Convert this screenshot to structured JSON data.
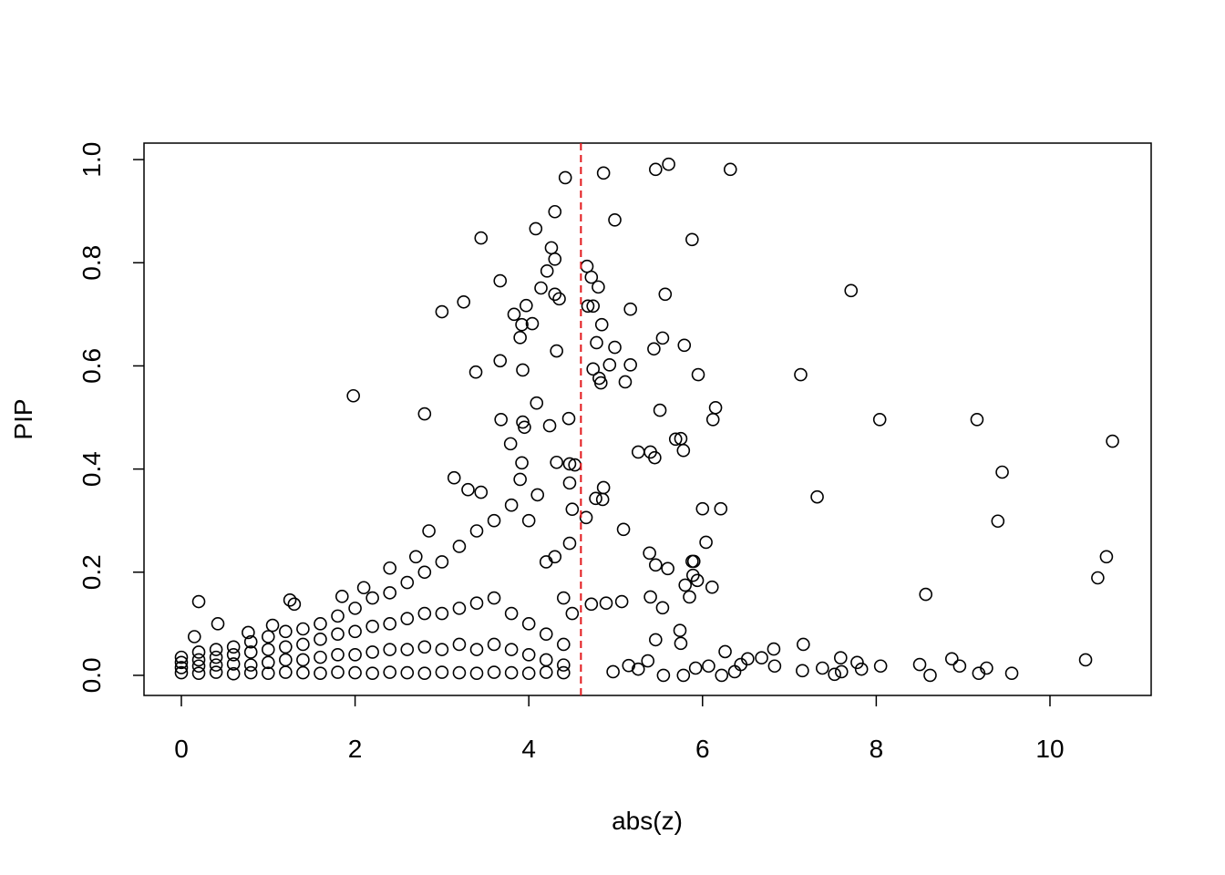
{
  "chart_data": {
    "type": "scatter",
    "x_label": "abs(z)",
    "y_label": "PIP",
    "xlim": [
      -0.43,
      11.165
    ],
    "ylim": [
      -0.039,
      1.032
    ],
    "xticks": [
      0,
      2,
      4,
      6,
      8,
      10
    ],
    "yticks": [
      {
        "value": 0,
        "label": "0.0"
      },
      0.2,
      0.4,
      0.6,
      0.8,
      {
        "value": 1,
        "label": "1.0"
      }
    ],
    "color": "#000000",
    "vline": 4.6,
    "vline_color": "#e3191c",
    "x": [
      4.42,
      4.86,
      5.46,
      5.61,
      6.32,
      4.08,
      4.3,
      4.99,
      3.45,
      5.88,
      4.26,
      4.3,
      4.67,
      4.21,
      4.72,
      3.67,
      4.8,
      4.14,
      7.71,
      4.3,
      5.57,
      4.35,
      3.25,
      3.97,
      4.68,
      4.74,
      5.17,
      3.0,
      3.83,
      4.04,
      3.92,
      4.84,
      3.9,
      5.54,
      4.78,
      5.79,
      4.32,
      5.44,
      4.99,
      4.74,
      4.93,
      5.17,
      3.39,
      3.93,
      3.67,
      5.95,
      7.13,
      4.81,
      4.83,
      5.11,
      1.98,
      4.09,
      6.15,
      5.51,
      2.8,
      3.68,
      4.46,
      6.12,
      8.04,
      9.16,
      3.93,
      4.24,
      3.95,
      5.69,
      5.75,
      10.72,
      3.79,
      5.26,
      5.4,
      5.78,
      5.45,
      3.92,
      4.47,
      4.53,
      4.32,
      9.45,
      4.47,
      3.14,
      4.86,
      7.32,
      4.85,
      4.77,
      6.0,
      6.21,
      4.5,
      9.4,
      4.66,
      5.09,
      6.04,
      4.47,
      5.39,
      10.65,
      5.46,
      5.6,
      5.88,
      5.9,
      10.55,
      5.89,
      5.94,
      5.8,
      6.11,
      5.85,
      8.57,
      5.4,
      5.07,
      4.89,
      4.72,
      0.2,
      5.54,
      5.74,
      7.16,
      5.75,
      5.46,
      6.82,
      6.26,
      7.59,
      7.78,
      8.05,
      8.5,
      8.87,
      8.96,
      9.27,
      9.18,
      9.56,
      8.62,
      10.41,
      7.15,
      7.38,
      7.52,
      7.6,
      7.83,
      6.68,
      6.52,
      6.44,
      6.37,
      6.22,
      6.07,
      5.92,
      6.83,
      5.78,
      5.55,
      5.37,
      5.26,
      5.15,
      4.97,
      0.0,
      0.0,
      0.0,
      0.0,
      0.2,
      0.2,
      0.2,
      0.2,
      0.4,
      0.4,
      0.4,
      0.4,
      0.6,
      0.6,
      0.6,
      0.6,
      0.8,
      0.8,
      0.8,
      0.8,
      1.0,
      1.0,
      1.0,
      1.0,
      1.2,
      1.2,
      1.2,
      1.2,
      1.4,
      1.4,
      1.4,
      1.4,
      1.6,
      1.6,
      1.6,
      1.6,
      1.8,
      1.8,
      1.8,
      1.8,
      2.0,
      2.0,
      2.0,
      2.0,
      2.2,
      2.2,
      2.2,
      2.2,
      2.4,
      2.4,
      2.4,
      2.4,
      2.6,
      2.6,
      2.6,
      2.6,
      2.8,
      2.8,
      2.8,
      2.8,
      3.0,
      3.0,
      3.0,
      3.0,
      3.2,
      3.2,
      3.2,
      3.2,
      3.4,
      3.4,
      3.4,
      3.4,
      3.6,
      3.6,
      3.6,
      3.6,
      3.8,
      3.8,
      3.8,
      3.8,
      4.0,
      4.0,
      4.0,
      4.0,
      4.2,
      4.2,
      4.2,
      4.2,
      4.4,
      4.4,
      4.4,
      4.4,
      0.15,
      0.42,
      0.77,
      1.05,
      1.25,
      1.3,
      1.85,
      2.1,
      2.4,
      2.7,
      2.85,
      3.3,
      3.45,
      3.9,
      4.1,
      4.3,
      4.5
    ],
    "values": [
      0.965,
      0.974,
      0.981,
      0.991,
      0.981,
      0.866,
      0.899,
      0.883,
      0.848,
      0.845,
      0.829,
      0.807,
      0.793,
      0.784,
      0.772,
      0.765,
      0.753,
      0.751,
      0.746,
      0.739,
      0.739,
      0.73,
      0.724,
      0.717,
      0.716,
      0.716,
      0.71,
      0.705,
      0.7,
      0.682,
      0.68,
      0.68,
      0.655,
      0.654,
      0.645,
      0.64,
      0.629,
      0.633,
      0.636,
      0.594,
      0.602,
      0.602,
      0.588,
      0.592,
      0.61,
      0.583,
      0.583,
      0.576,
      0.567,
      0.569,
      0.542,
      0.528,
      0.519,
      0.514,
      0.507,
      0.496,
      0.498,
      0.496,
      0.496,
      0.496,
      0.491,
      0.484,
      0.481,
      0.458,
      0.459,
      0.454,
      0.449,
      0.433,
      0.433,
      0.436,
      0.422,
      0.412,
      0.41,
      0.408,
      0.413,
      0.394,
      0.373,
      0.383,
      0.364,
      0.346,
      0.341,
      0.343,
      0.323,
      0.323,
      0.322,
      0.299,
      0.306,
      0.283,
      0.258,
      0.256,
      0.237,
      0.23,
      0.214,
      0.207,
      0.221,
      0.221,
      0.189,
      0.194,
      0.184,
      0.175,
      0.171,
      0.152,
      0.157,
      0.152,
      0.143,
      0.14,
      0.138,
      0.143,
      0.131,
      0.087,
      0.06,
      0.062,
      0.069,
      0.051,
      0.046,
      0.034,
      0.025,
      0.018,
      0.021,
      0.032,
      0.018,
      0.014,
      0.004,
      0.004,
      0.0,
      0.03,
      0.009,
      0.014,
      0.002,
      0.007,
      0.012,
      0.034,
      0.032,
      0.021,
      0.007,
      0.0,
      0.018,
      0.014,
      0.018,
      0.0,
      0.0,
      0.028,
      0.012,
      0.019,
      0.007,
      0.005,
      0.015,
      0.025,
      0.035,
      0.004,
      0.018,
      0.03,
      0.045,
      0.006,
      0.02,
      0.035,
      0.05,
      0.003,
      0.022,
      0.04,
      0.055,
      0.005,
      0.02,
      0.045,
      0.065,
      0.004,
      0.025,
      0.05,
      0.075,
      0.006,
      0.03,
      0.055,
      0.085,
      0.005,
      0.03,
      0.06,
      0.09,
      0.004,
      0.035,
      0.07,
      0.1,
      0.006,
      0.04,
      0.08,
      0.115,
      0.005,
      0.04,
      0.085,
      0.13,
      0.004,
      0.045,
      0.095,
      0.15,
      0.006,
      0.05,
      0.1,
      0.16,
      0.005,
      0.05,
      0.11,
      0.18,
      0.004,
      0.055,
      0.12,
      0.2,
      0.006,
      0.05,
      0.12,
      0.22,
      0.005,
      0.06,
      0.13,
      0.25,
      0.004,
      0.05,
      0.14,
      0.28,
      0.006,
      0.06,
      0.15,
      0.3,
      0.005,
      0.05,
      0.12,
      0.33,
      0.004,
      0.04,
      0.1,
      0.3,
      0.006,
      0.03,
      0.08,
      0.22,
      0.005,
      0.02,
      0.06,
      0.15,
      0.075,
      0.1,
      0.083,
      0.097,
      0.146,
      0.138,
      0.153,
      0.17,
      0.208,
      0.23,
      0.28,
      0.36,
      0.355,
      0.38,
      0.35,
      0.23,
      0.12
    ]
  }
}
